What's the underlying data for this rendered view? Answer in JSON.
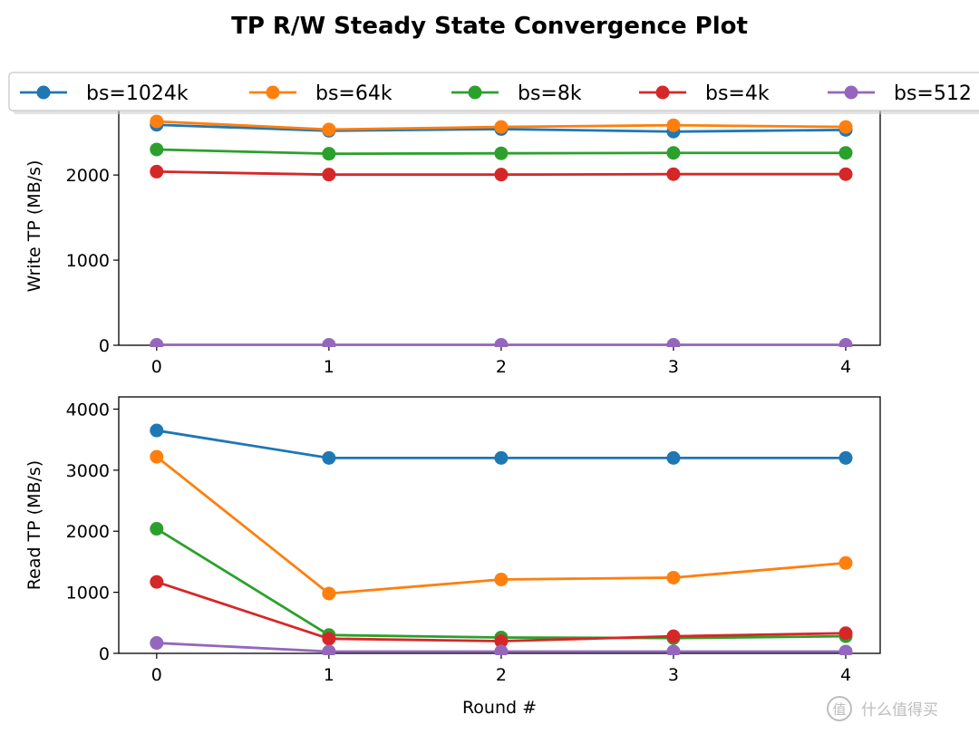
{
  "chart_data": [
    {
      "type": "line",
      "panel": "write",
      "title": "TP R/W Steady State Convergence Plot",
      "ylabel": "Write TP (MB/s)",
      "xlabel": "",
      "x": [
        0,
        1,
        2,
        3,
        4
      ],
      "xlim": [
        -0.22,
        4.2
      ],
      "ylim": [
        0,
        2800
      ],
      "yticks": [
        0,
        1000,
        2000
      ],
      "series": [
        {
          "name": "bs=1024k",
          "color": "#1f77b4",
          "values": [
            2590,
            2520,
            2540,
            2510,
            2530
          ]
        },
        {
          "name": "bs=64k",
          "color": "#ff7f0e",
          "values": [
            2630,
            2535,
            2565,
            2585,
            2565
          ]
        },
        {
          "name": "bs=8k",
          "color": "#2ca02c",
          "values": [
            2300,
            2250,
            2255,
            2260,
            2260
          ]
        },
        {
          "name": "bs=4k",
          "color": "#d62728",
          "values": [
            2040,
            2005,
            2005,
            2010,
            2010
          ]
        },
        {
          "name": "bs=512",
          "color": "#9467bd",
          "values": [
            5,
            5,
            5,
            5,
            5
          ]
        }
      ]
    },
    {
      "type": "line",
      "panel": "read",
      "ylabel": "Read TP (MB/s)",
      "xlabel": "Round #",
      "x": [
        0,
        1,
        2,
        3,
        4
      ],
      "xlim": [
        -0.22,
        4.2
      ],
      "ylim": [
        0,
        4200
      ],
      "yticks": [
        0,
        1000,
        2000,
        3000,
        4000
      ],
      "series": [
        {
          "name": "bs=1024k",
          "color": "#1f77b4",
          "values": [
            3650,
            3200,
            3200,
            3200,
            3200
          ]
        },
        {
          "name": "bs=64k",
          "color": "#ff7f0e",
          "values": [
            3220,
            980,
            1210,
            1240,
            1480
          ]
        },
        {
          "name": "bs=8k",
          "color": "#2ca02c",
          "values": [
            2040,
            300,
            260,
            250,
            280
          ]
        },
        {
          "name": "bs=4k",
          "color": "#d62728",
          "values": [
            1170,
            240,
            200,
            280,
            330
          ]
        },
        {
          "name": "bs=512",
          "color": "#9467bd",
          "values": [
            170,
            30,
            30,
            30,
            30
          ]
        }
      ]
    }
  ],
  "legend": {
    "placement": "top",
    "items": [
      "bs=1024k",
      "bs=64k",
      "bs=8k",
      "bs=4k",
      "bs=512"
    ]
  },
  "watermark": {
    "text": "什么值得买",
    "icon": "zhi-logo-icon"
  }
}
